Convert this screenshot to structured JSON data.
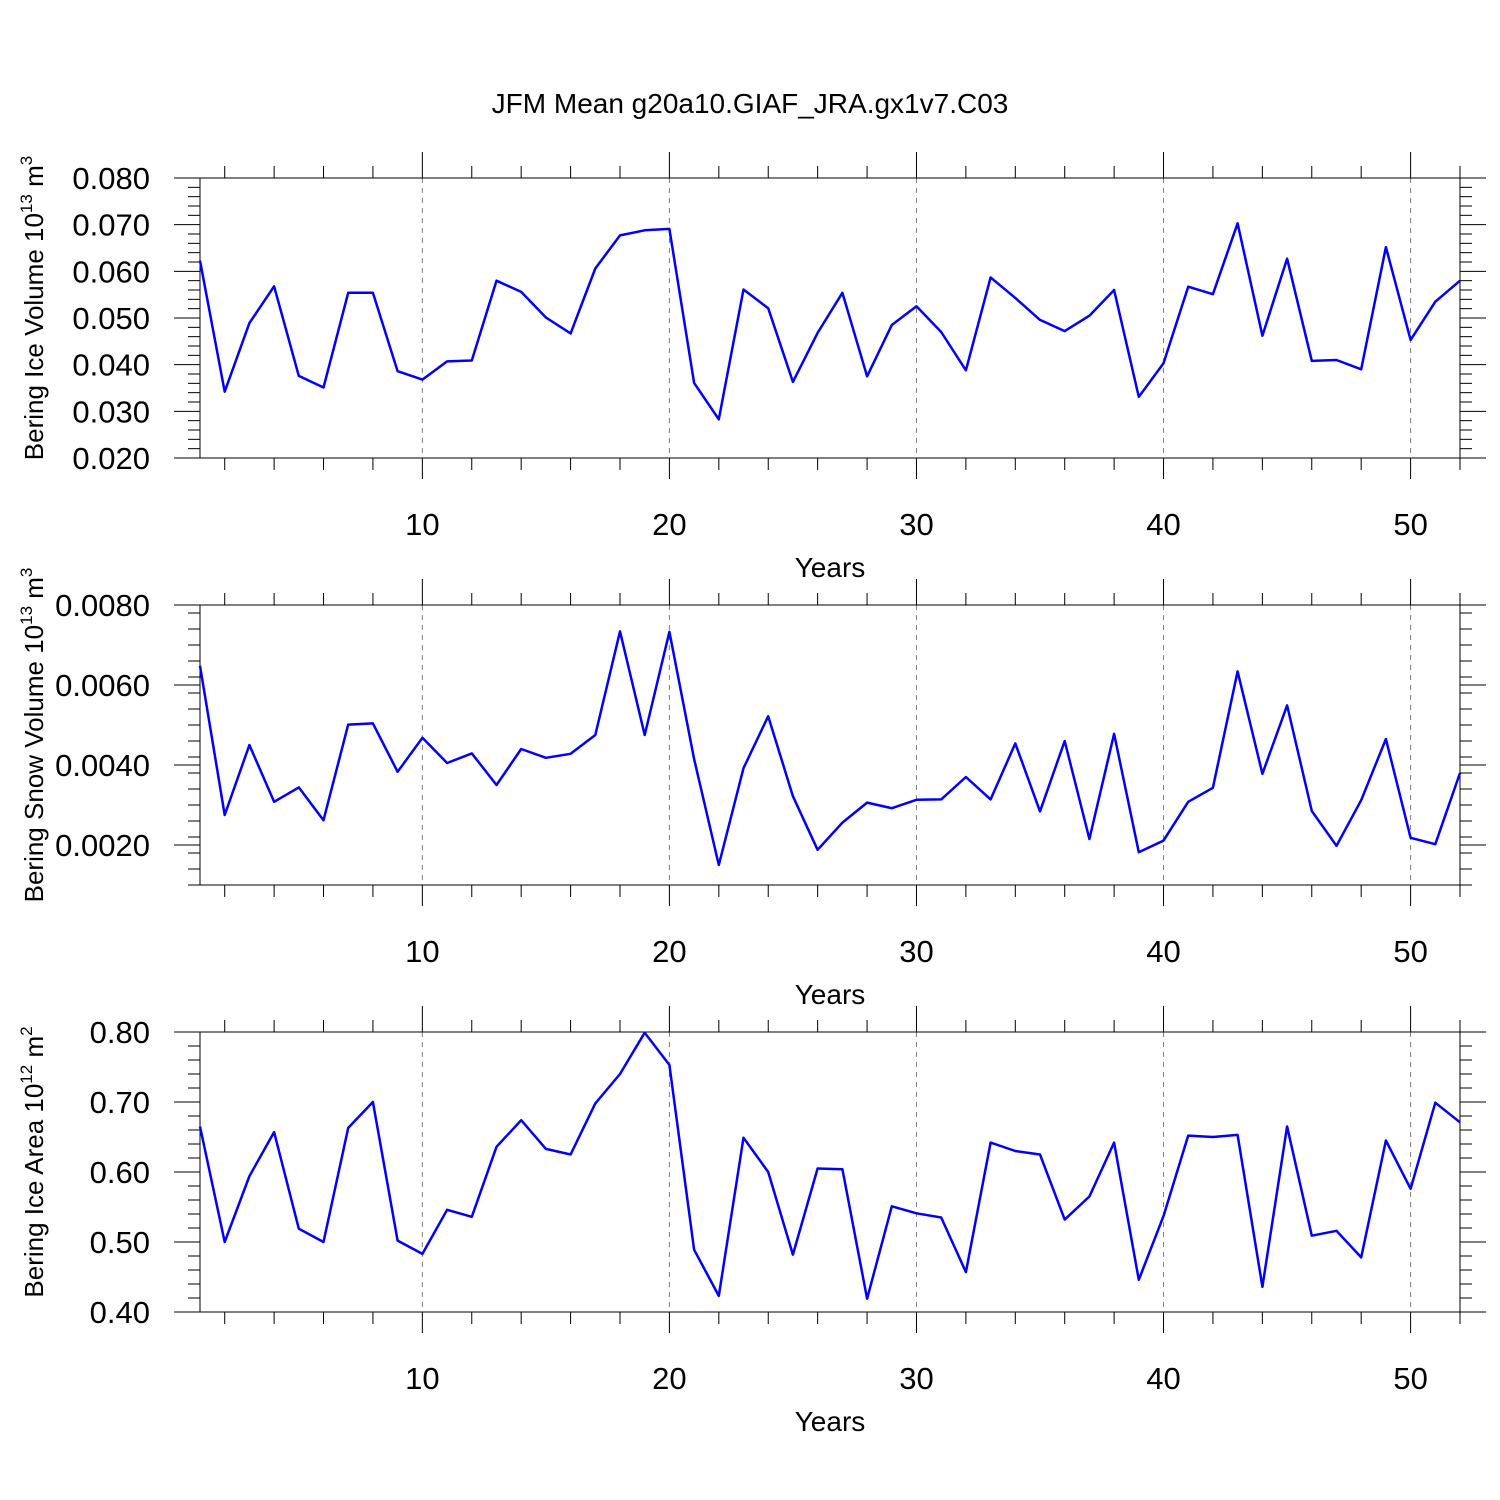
{
  "title": "JFM Mean g20a10.GIAF_JRA.gx1v7.C03",
  "colors": {
    "line": "#0000ff",
    "axis": "#000000",
    "grid": "#808080"
  },
  "chart_data": [
    {
      "type": "line",
      "xlabel": "Years",
      "ylabel_prefix": "Bering Ice Volume 10",
      "ylabel_exp": "13",
      "ylabel_unit": " m",
      "ylabel_unit_exp": "3",
      "xlim": [
        1,
        52
      ],
      "ylim": [
        0.02,
        0.08
      ],
      "xticks": [
        "10",
        "20",
        "30",
        "40",
        "50"
      ],
      "yticks": [
        "0.020",
        "0.030",
        "0.040",
        "0.050",
        "0.060",
        "0.070",
        "0.080"
      ],
      "series": [
        {
          "name": "Bering Ice Volume",
          "x": [
            1,
            2,
            3,
            4,
            5,
            6,
            7,
            8,
            9,
            10,
            11,
            12,
            13,
            14,
            15,
            16,
            17,
            18,
            19,
            20,
            21,
            22,
            23,
            24,
            25,
            26,
            27,
            28,
            29,
            30,
            31,
            32,
            33,
            34,
            35,
            36,
            37,
            38,
            39,
            40,
            41,
            42,
            43,
            44,
            45,
            46,
            47,
            48,
            49,
            50,
            51,
            52
          ],
          "values": [
            0.0623,
            0.0342,
            0.0489,
            0.0568,
            0.0376,
            0.0351,
            0.0554,
            0.0554,
            0.0386,
            0.0368,
            0.0407,
            0.0409,
            0.058,
            0.0556,
            0.0501,
            0.0467,
            0.0606,
            0.0677,
            0.0688,
            0.0691,
            0.0361,
            0.0283,
            0.0561,
            0.0521,
            0.0363,
            0.0468,
            0.0554,
            0.0375,
            0.0485,
            0.0525,
            0.047,
            0.0388,
            0.0587,
            0.0543,
            0.0496,
            0.0472,
            0.0505,
            0.056,
            0.0331,
            0.0403,
            0.0567,
            0.0551,
            0.0703,
            0.0462,
            0.0627,
            0.0408,
            0.041,
            0.039,
            0.0652,
            0.0453,
            0.0535,
            0.058
          ]
        }
      ]
    },
    {
      "type": "line",
      "xlabel": "Years",
      "ylabel_prefix": "Bering Snow Volume 10",
      "ylabel_exp": "13",
      "ylabel_unit": " m",
      "ylabel_unit_exp": "3",
      "xlim": [
        1,
        52
      ],
      "ylim": [
        0.001,
        0.008
      ],
      "xticks": [
        "10",
        "20",
        "30",
        "40",
        "50"
      ],
      "yticks": [
        "0.0020",
        "0.0040",
        "0.0060",
        "0.0080"
      ],
      "series": [
        {
          "name": "Bering Snow Volume",
          "x": [
            1,
            2,
            3,
            4,
            5,
            6,
            7,
            8,
            9,
            10,
            11,
            12,
            13,
            14,
            15,
            16,
            17,
            18,
            19,
            20,
            21,
            22,
            23,
            24,
            25,
            26,
            27,
            28,
            29,
            30,
            31,
            32,
            33,
            34,
            35,
            36,
            37,
            38,
            39,
            40,
            41,
            42,
            43,
            44,
            45,
            46,
            47,
            48,
            49,
            50,
            51,
            52
          ],
          "values": [
            0.00648,
            0.00275,
            0.0045,
            0.00308,
            0.00344,
            0.00262,
            0.00501,
            0.00504,
            0.00383,
            0.00468,
            0.00405,
            0.00429,
            0.0035,
            0.0044,
            0.00418,
            0.00428,
            0.00475,
            0.00734,
            0.00475,
            0.00733,
            0.00415,
            0.0015,
            0.00392,
            0.00522,
            0.00322,
            0.00188,
            0.00256,
            0.00306,
            0.00292,
            0.00313,
            0.00314,
            0.0037,
            0.00314,
            0.00454,
            0.00284,
            0.0046,
            0.00215,
            0.00478,
            0.00182,
            0.00211,
            0.00308,
            0.00343,
            0.00634,
            0.00378,
            0.00549,
            0.00285,
            0.00198,
            0.00312,
            0.00465,
            0.00218,
            0.00202,
            0.0038
          ]
        }
      ]
    },
    {
      "type": "line",
      "xlabel": "Years",
      "ylabel_prefix": "Bering Ice Area 10",
      "ylabel_exp": "12",
      "ylabel_unit": " m",
      "ylabel_unit_exp": "2",
      "xlim": [
        1,
        52
      ],
      "ylim": [
        0.4,
        0.8
      ],
      "xticks": [
        "10",
        "20",
        "30",
        "40",
        "50"
      ],
      "yticks": [
        "0.40",
        "0.50",
        "0.60",
        "0.70",
        "0.80"
      ],
      "series": [
        {
          "name": "Bering Ice Area",
          "x": [
            1,
            2,
            3,
            4,
            5,
            6,
            7,
            8,
            9,
            10,
            11,
            12,
            13,
            14,
            15,
            16,
            17,
            18,
            19,
            20,
            21,
            22,
            23,
            24,
            25,
            26,
            27,
            28,
            29,
            30,
            31,
            32,
            33,
            34,
            35,
            36,
            37,
            38,
            39,
            40,
            41,
            42,
            43,
            44,
            45,
            46,
            47,
            48,
            49,
            50,
            51,
            52
          ],
          "values": [
            0.665,
            0.5,
            0.594,
            0.657,
            0.519,
            0.5,
            0.663,
            0.7,
            0.502,
            0.483,
            0.546,
            0.536,
            0.636,
            0.674,
            0.633,
            0.625,
            0.698,
            0.74,
            0.799,
            0.753,
            0.489,
            0.423,
            0.649,
            0.6,
            0.482,
            0.605,
            0.604,
            0.419,
            0.551,
            0.541,
            0.535,
            0.457,
            0.642,
            0.63,
            0.625,
            0.532,
            0.565,
            0.642,
            0.446,
            0.537,
            0.652,
            0.65,
            0.653,
            0.436,
            0.665,
            0.509,
            0.516,
            0.478,
            0.645,
            0.576,
            0.699,
            0.671
          ]
        }
      ]
    }
  ]
}
